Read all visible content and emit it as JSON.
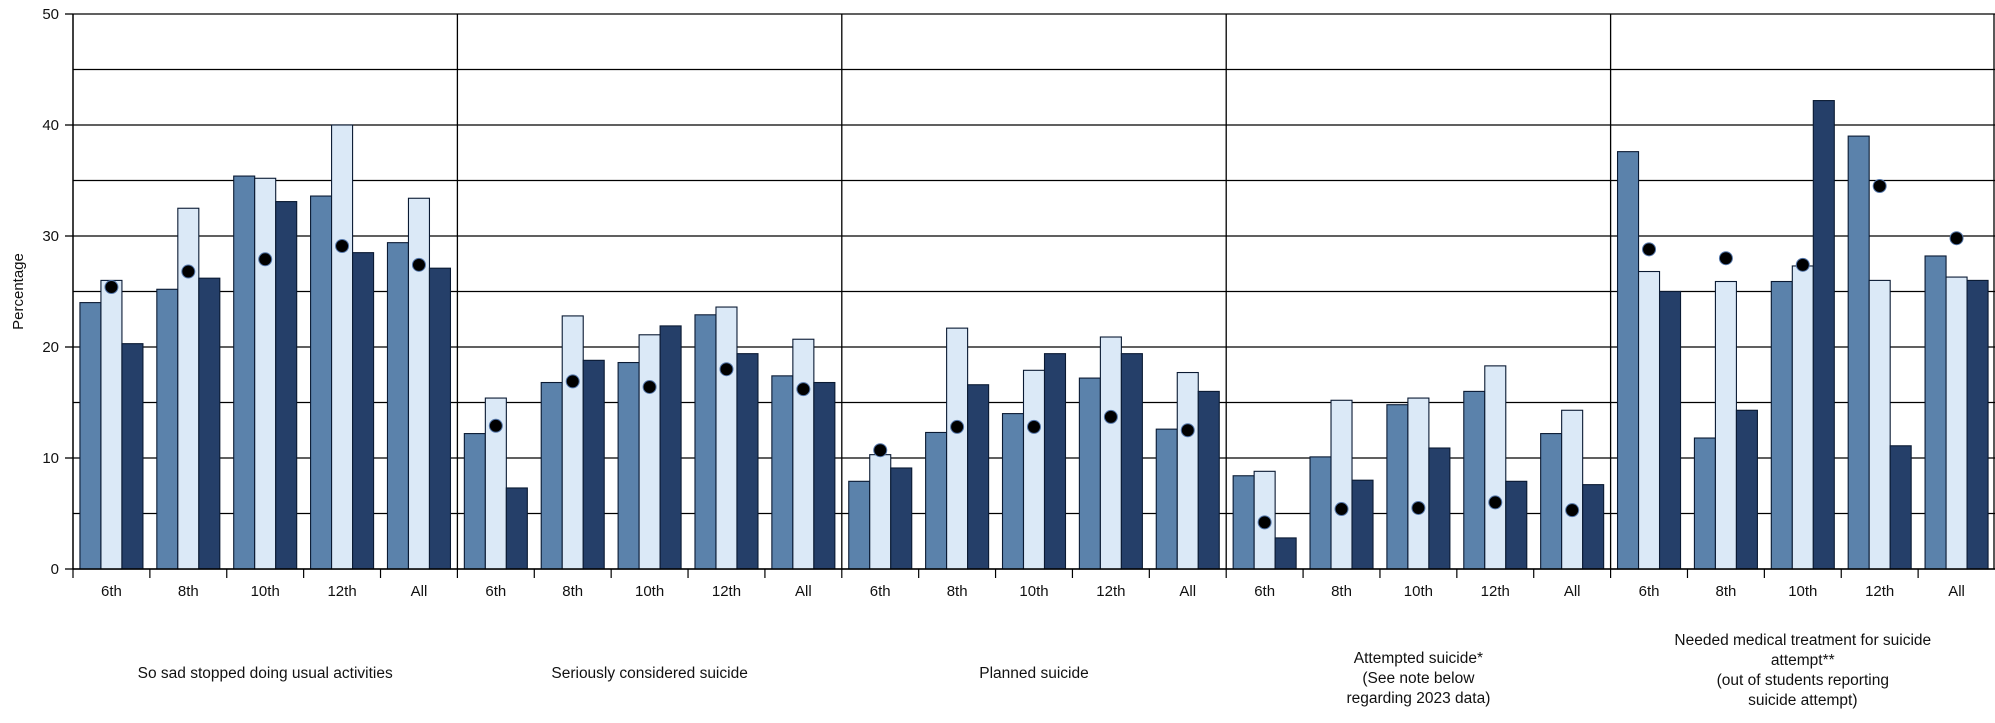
{
  "chart_data": {
    "type": "bar",
    "ylabel": "Percentage",
    "ylim": [
      0,
      50
    ],
    "yticks": [
      0,
      10,
      20,
      30,
      40,
      50
    ],
    "grid": true,
    "categories": [
      "6th",
      "8th",
      "10th",
      "12th",
      "All"
    ],
    "groups": [
      {
        "label_lines": [
          "So sad stopped doing usual activities"
        ],
        "values": [
          [
            24.0,
            26.0,
            20.3
          ],
          [
            25.2,
            32.5,
            26.2
          ],
          [
            35.4,
            35.2,
            33.1
          ],
          [
            33.6,
            40.0,
            28.5
          ],
          [
            29.4,
            33.4,
            27.1
          ]
        ],
        "dots": [
          25.4,
          26.8,
          27.9,
          29.1,
          27.4
        ]
      },
      {
        "label_lines": [
          "Seriously considered suicide"
        ],
        "values": [
          [
            12.2,
            15.4,
            7.3
          ],
          [
            16.8,
            22.8,
            18.8
          ],
          [
            18.6,
            21.1,
            21.9
          ],
          [
            22.9,
            23.6,
            19.4
          ],
          [
            17.4,
            20.7,
            16.8
          ]
        ],
        "dots": [
          12.9,
          16.9,
          16.4,
          18.0,
          16.2
        ]
      },
      {
        "label_lines": [
          "Planned suicide"
        ],
        "values": [
          [
            7.9,
            10.3,
            9.1
          ],
          [
            12.3,
            21.7,
            16.6
          ],
          [
            14.0,
            17.9,
            19.4
          ],
          [
            17.2,
            20.9,
            19.4
          ],
          [
            12.6,
            17.7,
            16.0
          ]
        ],
        "dots": [
          10.7,
          12.8,
          12.8,
          13.7,
          12.5
        ]
      },
      {
        "label_lines": [
          "Attempted suicide*",
          "(See note below",
          "regarding 2023 data)"
        ],
        "values": [
          [
            8.4,
            8.8,
            2.8
          ],
          [
            10.1,
            15.2,
            8.0
          ],
          [
            14.8,
            15.4,
            10.9
          ],
          [
            16.0,
            18.3,
            7.9
          ],
          [
            12.2,
            14.3,
            7.6
          ]
        ],
        "dots": [
          4.2,
          5.4,
          5.5,
          6.0,
          5.3
        ]
      },
      {
        "label_lines": [
          "Needed medical treatment for suicide",
          "attempt**",
          "(out of students reporting",
          "suicide attempt)"
        ],
        "values": [
          [
            37.6,
            26.8,
            25.0
          ],
          [
            11.8,
            25.9,
            14.3
          ],
          [
            25.9,
            27.3,
            42.2
          ],
          [
            39.0,
            26.0,
            11.1
          ],
          [
            28.2,
            26.3,
            26.0
          ]
        ],
        "dots": [
          28.8,
          28.0,
          27.4,
          34.5,
          29.8
        ]
      }
    ],
    "series_colors": [
      "#5b82ab",
      "#dbe9f7",
      "#253f69"
    ],
    "dot_color": "#000000"
  }
}
